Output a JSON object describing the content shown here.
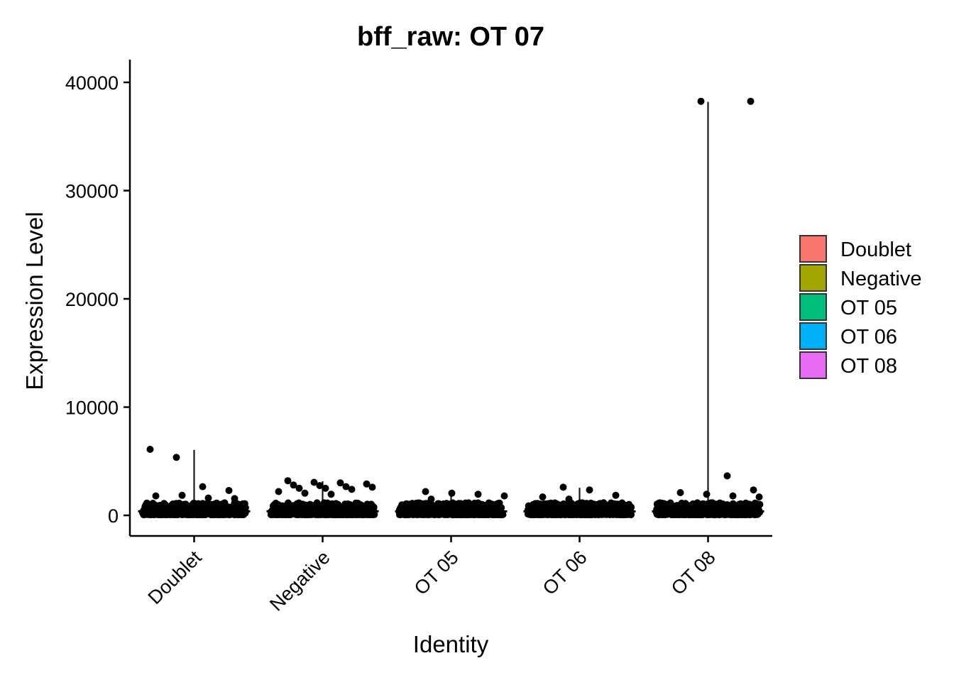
{
  "chart_data": {
    "type": "violin",
    "title": "bff_raw: OT 07",
    "xlabel": "Identity",
    "ylabel": "Expression Level",
    "ylim": [
      -1900,
      42100
    ],
    "y_ticks": [
      0,
      10000,
      20000,
      30000,
      40000
    ],
    "y_tick_labels": [
      "0",
      "10000",
      "20000",
      "30000",
      "40000"
    ],
    "categories": [
      "Doublet",
      "Negative",
      "OT 05",
      "OT 06",
      "OT 08"
    ],
    "legend": {
      "title": "",
      "position": "right",
      "entries": [
        {
          "label": "Doublet",
          "color": "#F8766D"
        },
        {
          "label": "Negative",
          "color": "#A3A500"
        },
        {
          "label": "OT 05",
          "color": "#00BF7D"
        },
        {
          "label": "OT 06",
          "color": "#00B0F6"
        },
        {
          "label": "OT 08",
          "color": "#E76BF3"
        }
      ]
    },
    "series": [
      {
        "category": "Doublet",
        "max": 6050,
        "median": 380,
        "outliers": [
          6100,
          5350,
          2650,
          2300,
          1800,
          1850,
          1600,
          1550
        ]
      },
      {
        "category": "Negative",
        "max": 3150,
        "median": 380,
        "outliers": [
          3200,
          3050,
          3000,
          2900,
          2800,
          2750,
          2650,
          2600,
          2500,
          2500,
          2400,
          2200,
          2050,
          1950
        ]
      },
      {
        "category": "OT 05",
        "max": 2100,
        "median": 370,
        "outliers": [
          2200,
          2050,
          1950,
          1800,
          1500
        ]
      },
      {
        "category": "OT 06",
        "max": 2550,
        "median": 370,
        "outliers": [
          2600,
          2350,
          1850,
          1700,
          1500
        ]
      },
      {
        "category": "OT 08",
        "max": 38200,
        "median": 370,
        "outliers": [
          38250,
          3650,
          2350,
          2100,
          1950,
          1800,
          1700
        ]
      }
    ]
  }
}
